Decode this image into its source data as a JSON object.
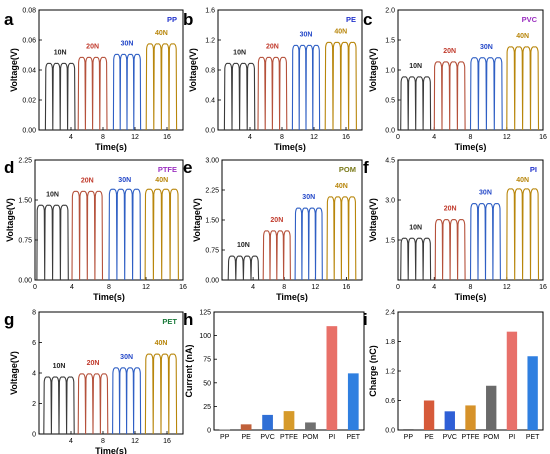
{
  "figure": {
    "panels": [
      "a",
      "b",
      "c",
      "d",
      "e",
      "f",
      "g",
      "h",
      "i"
    ],
    "colors": {
      "10N": "#3a3a3a",
      "20N": "#b5513b",
      "30N": "#2f5fc4",
      "40N": "#b8860b",
      "title": "#1f3fbf",
      "label_10N": "#222222",
      "label_20N": "#c0392b",
      "label_30N": "#2347c8",
      "label_40N": "#b8860b"
    }
  },
  "chart_data": [
    {
      "panel": "a",
      "type": "line",
      "title": "PP",
      "title_color": "#2233cc",
      "xlabel": "Time(s)",
      "ylabel": "Voltage(V)",
      "xlim": [
        0,
        18
      ],
      "ylim": [
        0,
        0.08
      ],
      "xticks": [
        4,
        8,
        12,
        16
      ],
      "yticks": [
        0.0,
        0.02,
        0.04,
        0.06,
        0.08
      ],
      "ytick_labels": [
        "0.00",
        "0.02",
        "0.04",
        "0.06",
        "0.08"
      ],
      "series": [
        {
          "name": "10N",
          "x_start": 0.8,
          "x_end": 4.5,
          "base": 0,
          "peak": 0.045
        },
        {
          "name": "20N",
          "x_start": 4.9,
          "x_end": 8.5,
          "base": 0,
          "peak": 0.049
        },
        {
          "name": "30N",
          "x_start": 9.3,
          "x_end": 12.7,
          "base": 0,
          "peak": 0.051
        },
        {
          "name": "40N",
          "x_start": 13.4,
          "x_end": 17.2,
          "base": 0,
          "peak": 0.058
        }
      ]
    },
    {
      "panel": "b",
      "type": "line",
      "title": "PE",
      "title_color": "#2233cc",
      "xlabel": "Time(s)",
      "ylabel": "Voltage(V)",
      "xlim": [
        0,
        18
      ],
      "ylim": [
        0,
        1.6
      ],
      "xticks": [
        4,
        8,
        12,
        16
      ],
      "yticks": [
        0.0,
        0.4,
        0.8,
        1.2,
        1.6
      ],
      "ytick_labels": [
        "0.0",
        "0.4",
        "0.8",
        "1.2",
        "1.6"
      ],
      "series": [
        {
          "name": "10N",
          "x_start": 0.8,
          "x_end": 4.6,
          "base": 0,
          "peak": 0.9
        },
        {
          "name": "20N",
          "x_start": 5.0,
          "x_end": 8.6,
          "base": 0,
          "peak": 0.98
        },
        {
          "name": "30N",
          "x_start": 9.3,
          "x_end": 12.7,
          "base": 0,
          "peak": 1.14
        },
        {
          "name": "40N",
          "x_start": 13.4,
          "x_end": 17.3,
          "base": 0,
          "peak": 1.18
        }
      ]
    },
    {
      "panel": "c",
      "type": "line",
      "title": "PVC",
      "title_color": "#9b30c0",
      "xlabel": "Time(s)",
      "ylabel": "Voltage(V)",
      "xlim": [
        0,
        16
      ],
      "ylim": [
        0,
        2.0
      ],
      "xticks": [
        0,
        4,
        8,
        12,
        16
      ],
      "yticks": [
        0.0,
        0.5,
        1.0,
        1.5,
        2.0
      ],
      "ytick_labels": [
        "0.0",
        "0.5",
        "1.0",
        "1.5",
        "2.0"
      ],
      "series": [
        {
          "name": "10N",
          "x_start": 0.3,
          "x_end": 3.6,
          "base": 0,
          "peak": 0.9
        },
        {
          "name": "20N",
          "x_start": 4.0,
          "x_end": 7.4,
          "base": 0,
          "peak": 1.15
        },
        {
          "name": "30N",
          "x_start": 8.0,
          "x_end": 11.5,
          "base": 0,
          "peak": 1.22
        },
        {
          "name": "40N",
          "x_start": 12.0,
          "x_end": 15.5,
          "base": 0,
          "peak": 1.4
        }
      ]
    },
    {
      "panel": "d",
      "type": "line",
      "title": "PTFE",
      "title_color": "#9b30c0",
      "xlabel": "Time(s)",
      "ylabel": "Voltage(V)",
      "xlim": [
        0,
        16
      ],
      "ylim": [
        0,
        2.25
      ],
      "xticks": [
        0,
        4,
        8,
        12,
        16
      ],
      "yticks": [
        0.0,
        0.75,
        1.5,
        2.25
      ],
      "ytick_labels": [
        "0.00",
        "0.75",
        "1.50",
        "2.25"
      ],
      "series": [
        {
          "name": "10N",
          "x_start": 0.2,
          "x_end": 3.6,
          "base": 0,
          "peak": 1.42
        },
        {
          "name": "20N",
          "x_start": 4.0,
          "x_end": 7.3,
          "base": 0,
          "peak": 1.68
        },
        {
          "name": "30N",
          "x_start": 8.0,
          "x_end": 11.4,
          "base": 0,
          "peak": 1.72
        },
        {
          "name": "40N",
          "x_start": 11.9,
          "x_end": 15.5,
          "base": 0,
          "peak": 1.72
        }
      ]
    },
    {
      "panel": "e",
      "type": "line",
      "title": "POM",
      "title_color": "#7a7a1a",
      "xlabel": "Time(s)",
      "ylabel": "Voltage(V)",
      "xlim": [
        0,
        18
      ],
      "ylim": [
        0,
        3.0
      ],
      "xticks": [
        4,
        8,
        12,
        16
      ],
      "yticks": [
        0.0,
        0.75,
        1.5,
        2.25,
        3.0
      ],
      "ytick_labels": [
        "0.00",
        "0.75",
        "1.50",
        "2.25",
        "3.00"
      ],
      "series": [
        {
          "name": "10N",
          "x_start": 0.8,
          "x_end": 4.7,
          "base": 0,
          "peak": 0.62
        },
        {
          "name": "20N",
          "x_start": 5.3,
          "x_end": 8.8,
          "base": 0,
          "peak": 1.25
        },
        {
          "name": "30N",
          "x_start": 9.4,
          "x_end": 12.9,
          "base": 0,
          "peak": 1.82
        },
        {
          "name": "40N",
          "x_start": 13.5,
          "x_end": 17.2,
          "base": 0,
          "peak": 2.1
        }
      ]
    },
    {
      "panel": "f",
      "type": "line",
      "title": "PI",
      "title_color": "#2233cc",
      "xlabel": "Time(s)",
      "ylabel": "Voltage(V)",
      "xlim": [
        0,
        16
      ],
      "ylim": [
        0,
        4.5
      ],
      "xticks": [
        0,
        4,
        8,
        12,
        16
      ],
      "yticks": [
        1.5,
        3.0,
        4.5
      ],
      "ytick_labels": [
        "1.5",
        "3.0",
        "4.5"
      ],
      "series": [
        {
          "name": "10N",
          "x_start": 0.3,
          "x_end": 3.6,
          "base": 0,
          "peak": 1.6
        },
        {
          "name": "20N",
          "x_start": 4.1,
          "x_end": 7.4,
          "base": 0,
          "peak": 2.3
        },
        {
          "name": "30N",
          "x_start": 8.0,
          "x_end": 11.3,
          "base": 0,
          "peak": 2.9
        },
        {
          "name": "40N",
          "x_start": 12.0,
          "x_end": 15.5,
          "base": 0,
          "peak": 3.45
        }
      ]
    },
    {
      "panel": "g",
      "type": "line",
      "title": "PET",
      "title_color": "#1a7a3a",
      "xlabel": "Time(s)",
      "ylabel": "Voltage(V)",
      "xlim": [
        0,
        18
      ],
      "ylim": [
        0,
        8
      ],
      "xticks": [
        4,
        8,
        12,
        16
      ],
      "yticks": [
        0,
        2,
        4,
        6,
        8
      ],
      "ytick_labels": [
        "0",
        "2",
        "4",
        "6",
        "8"
      ],
      "series": [
        {
          "name": "10N",
          "x_start": 0.6,
          "x_end": 4.4,
          "base": 0,
          "peak": 3.8
        },
        {
          "name": "20N",
          "x_start": 4.9,
          "x_end": 8.6,
          "base": 0,
          "peak": 4.0
        },
        {
          "name": "30N",
          "x_start": 9.2,
          "x_end": 12.7,
          "base": 0,
          "peak": 4.4
        },
        {
          "name": "40N",
          "x_start": 13.3,
          "x_end": 17.2,
          "base": 0,
          "peak": 5.3
        }
      ]
    },
    {
      "panel": "h",
      "type": "bar",
      "xlabel": "",
      "ylabel": "Current (nA)",
      "categories": [
        "PP",
        "PE",
        "PVC",
        "PTFE",
        "POM",
        "PI",
        "PET"
      ],
      "values": [
        0.5,
        6,
        16,
        20,
        8,
        110,
        60
      ],
      "ylim": [
        0,
        125
      ],
      "yticks": [
        0,
        25,
        50,
        75,
        100,
        125
      ],
      "ytick_labels": [
        "0",
        "25",
        "50",
        "75",
        "100",
        "125"
      ],
      "bar_colors": [
        "#6a6a6a",
        "#c0603a",
        "#2f6fd6",
        "#d69a2a",
        "#707070",
        "#e87068",
        "#2f7fe0"
      ]
    },
    {
      "panel": "i",
      "type": "bar",
      "xlabel": "",
      "ylabel": "Charge (nC)",
      "categories": [
        "PP",
        "PE",
        "PVC",
        "PTFE",
        "POM",
        "PI",
        "PET"
      ],
      "values": [
        0.02,
        0.6,
        0.38,
        0.5,
        0.9,
        2.0,
        1.5
      ],
      "ylim": [
        0,
        2.4
      ],
      "yticks": [
        0.0,
        0.6,
        1.2,
        1.8,
        2.4
      ],
      "ytick_labels": [
        "0.0",
        "0.6",
        "1.2",
        "1.8",
        "2.4"
      ],
      "bar_colors": [
        "#6a6a6a",
        "#d65a3a",
        "#2f5fd6",
        "#d6922a",
        "#6a6a6a",
        "#e8706a",
        "#2f7fe0"
      ]
    }
  ]
}
